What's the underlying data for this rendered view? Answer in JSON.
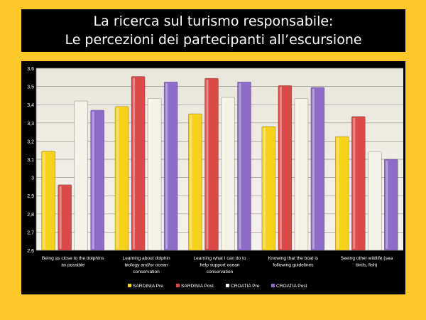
{
  "header": {
    "title_line1": "La ricerca sul turismo responsabile:",
    "title_line2": "Le percezioni dei partecipanti all’escursione"
  },
  "chart_data": {
    "type": "bar",
    "categories": [
      [
        "Being as close to the dolphins",
        "as possible"
      ],
      [
        "Learning about dolphin",
        "biology and/or ocean",
        "conservation"
      ],
      [
        "Learning what I can do to",
        "help support ocean",
        "conservation"
      ],
      [
        "Knowing that the boat is",
        "following guidelines"
      ],
      [
        "Seeing other wildlife (sea",
        "birds, fish)"
      ]
    ],
    "series": [
      {
        "name": "SARDINIA Pre",
        "color": "#f6d11c",
        "values": [
          3.145,
          3.39,
          3.35,
          3.28,
          3.225
        ]
      },
      {
        "name": "SARDINIA Post",
        "color": "#d94a48",
        "values": [
          2.96,
          3.555,
          3.545,
          3.505,
          3.335
        ]
      },
      {
        "name": "CROATIA Pre",
        "color": "#f2f2e6",
        "values": [
          3.42,
          3.435,
          3.44,
          3.435,
          3.14
        ]
      },
      {
        "name": "CROATIA Post",
        "color": "#8d6cc7",
        "values": [
          3.37,
          3.525,
          3.525,
          3.495,
          3.1
        ]
      }
    ],
    "ylim": [
      2.6,
      3.6
    ],
    "yticks": [
      "2,6",
      "2,7",
      "2,8",
      "2,9",
      "3",
      "3,1",
      "3,2",
      "3,3",
      "3,4",
      "3,5",
      "3,6"
    ],
    "grid": true,
    "legend_position": "bottom"
  }
}
